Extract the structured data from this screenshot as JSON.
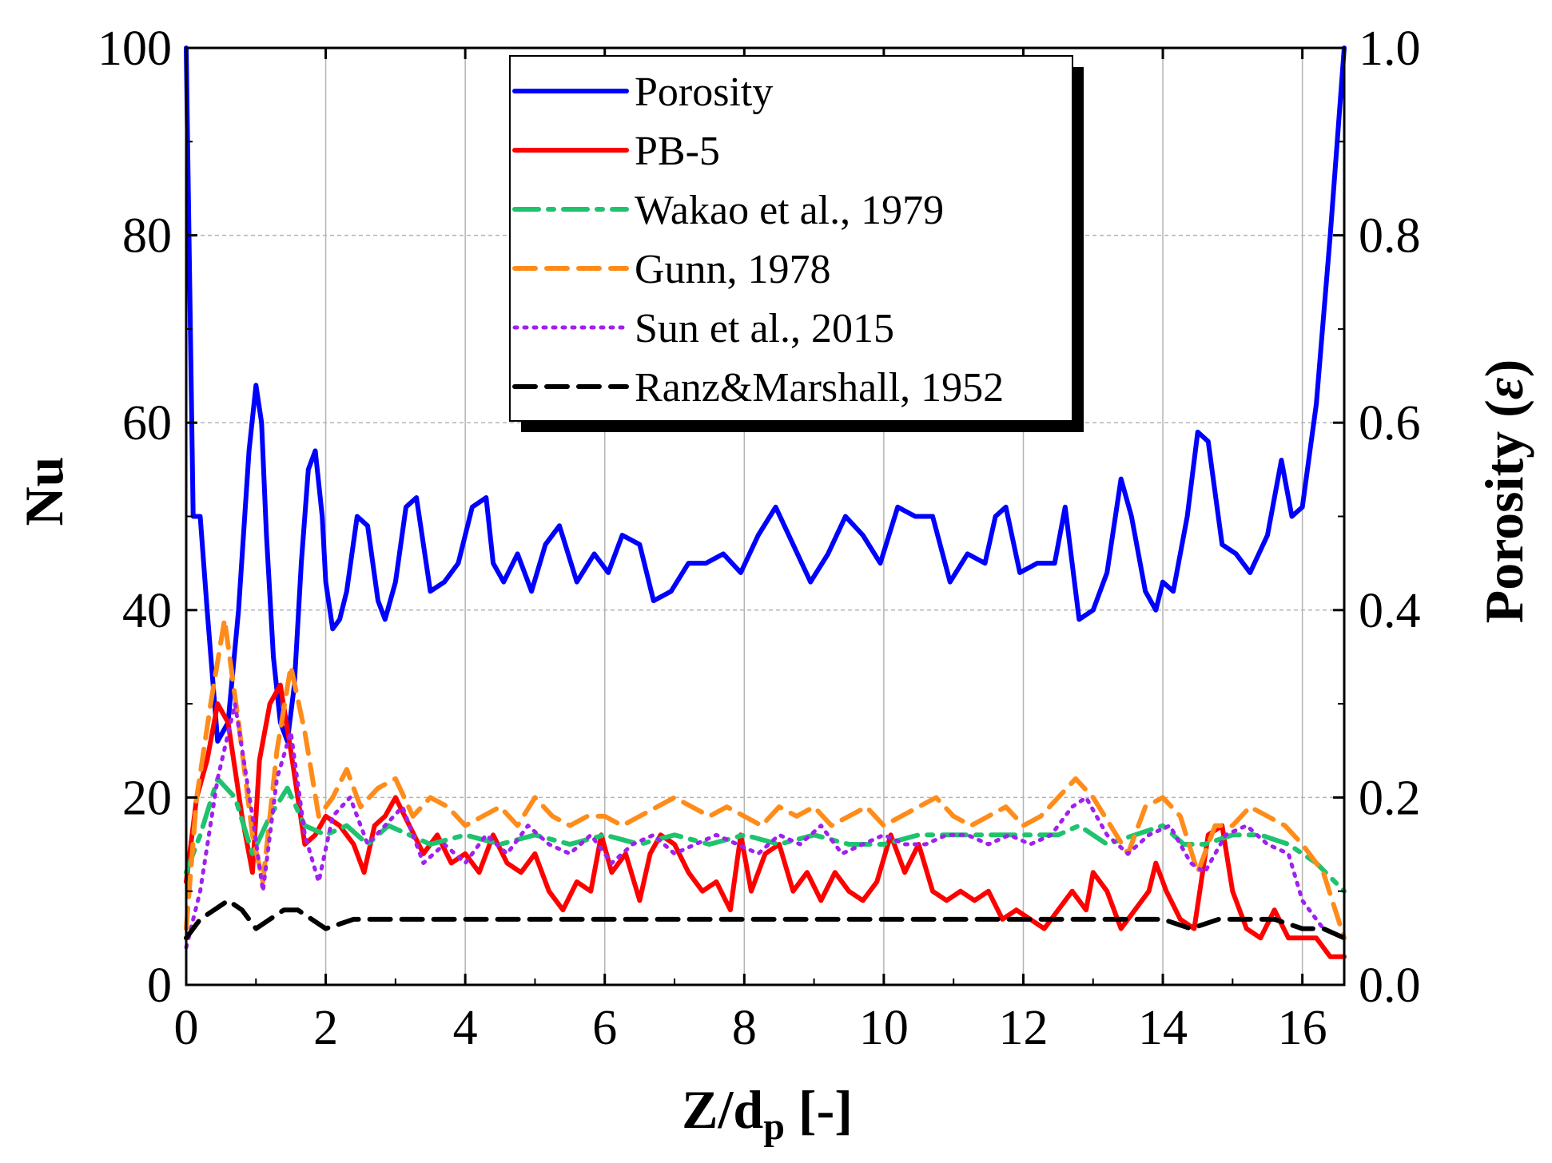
{
  "chart_data": {
    "type": "line",
    "title": "",
    "xlabel": {
      "main": "Z/d",
      "subscript": "p",
      "suffix": " [-]"
    },
    "ylabel": "Nu",
    "y2label": {
      "main": "Porosity (",
      "symbol": "ε",
      "suffix": ")"
    },
    "xlim": [
      0,
      16.6
    ],
    "ylim": [
      0,
      100
    ],
    "y2lim": [
      0.0,
      1.0
    ],
    "grid": true,
    "legend_position": "top-center",
    "xticks": [
      0,
      2,
      4,
      6,
      8,
      10,
      12,
      14,
      16
    ],
    "xtick_labels": [
      "0",
      "2",
      "4",
      "6",
      "8",
      "10",
      "12",
      "14",
      "16"
    ],
    "yticks": [
      0,
      20,
      40,
      60,
      80,
      100
    ],
    "ytick_labels": [
      "0",
      "20",
      "40",
      "60",
      "80",
      "100"
    ],
    "y2ticks": [
      0.0,
      0.2,
      0.4,
      0.6,
      0.8,
      1.0
    ],
    "y2tick_labels": [
      "0.0",
      "0.2",
      "0.4",
      "0.6",
      "0.8",
      "1.0"
    ],
    "series": [
      {
        "name": "Porosity",
        "axis": "right",
        "color": "#0000ff",
        "dash": "solid",
        "x": [
          0.0,
          0.1,
          0.2,
          0.3,
          0.45,
          0.6,
          0.75,
          0.9,
          1.0,
          1.08,
          1.15,
          1.25,
          1.35,
          1.45,
          1.55,
          1.65,
          1.75,
          1.85,
          1.95,
          2.0,
          2.1,
          2.2,
          2.3,
          2.45,
          2.6,
          2.75,
          2.85,
          3.0,
          3.15,
          3.3,
          3.5,
          3.7,
          3.9,
          4.1,
          4.3,
          4.4,
          4.55,
          4.75,
          4.95,
          5.15,
          5.35,
          5.6,
          5.85,
          6.05,
          6.25,
          6.5,
          6.7,
          6.95,
          7.2,
          7.45,
          7.7,
          7.95,
          8.2,
          8.45,
          8.7,
          8.95,
          9.2,
          9.45,
          9.7,
          9.95,
          10.2,
          10.45,
          10.7,
          10.95,
          11.2,
          11.45,
          11.6,
          11.75,
          11.95,
          12.2,
          12.45,
          12.6,
          12.8,
          13.0,
          13.2,
          13.4,
          13.55,
          13.75,
          13.9,
          14.0,
          14.15,
          14.35,
          14.5,
          14.65,
          14.85,
          15.05,
          15.25,
          15.5,
          15.7,
          15.85,
          16.0,
          16.2,
          16.4,
          16.6
        ],
        "values": [
          1.0,
          0.5,
          0.5,
          0.4,
          0.26,
          0.28,
          0.4,
          0.57,
          0.64,
          0.6,
          0.48,
          0.35,
          0.28,
          0.26,
          0.32,
          0.45,
          0.55,
          0.57,
          0.5,
          0.43,
          0.38,
          0.39,
          0.42,
          0.5,
          0.49,
          0.41,
          0.39,
          0.43,
          0.51,
          0.52,
          0.42,
          0.43,
          0.45,
          0.51,
          0.52,
          0.45,
          0.43,
          0.46,
          0.42,
          0.47,
          0.49,
          0.43,
          0.46,
          0.44,
          0.48,
          0.47,
          0.41,
          0.42,
          0.45,
          0.45,
          0.46,
          0.44,
          0.48,
          0.51,
          0.47,
          0.43,
          0.46,
          0.5,
          0.48,
          0.45,
          0.51,
          0.5,
          0.5,
          0.43,
          0.46,
          0.45,
          0.5,
          0.51,
          0.44,
          0.45,
          0.45,
          0.51,
          0.39,
          0.4,
          0.44,
          0.54,
          0.5,
          0.42,
          0.4,
          0.43,
          0.42,
          0.5,
          0.59,
          0.58,
          0.47,
          0.46,
          0.44,
          0.48,
          0.56,
          0.5,
          0.51,
          0.62,
          0.8,
          1.0
        ]
      },
      {
        "name": "PB-5",
        "axis": "left",
        "color": "#ff0000",
        "dash": "solid",
        "x": [
          0.0,
          0.15,
          0.3,
          0.45,
          0.6,
          0.8,
          0.95,
          1.05,
          1.2,
          1.35,
          1.5,
          1.7,
          1.85,
          2.0,
          2.2,
          2.4,
          2.55,
          2.7,
          2.85,
          3.0,
          3.2,
          3.4,
          3.6,
          3.8,
          4.0,
          4.2,
          4.4,
          4.6,
          4.8,
          5.0,
          5.2,
          5.4,
          5.6,
          5.8,
          5.95,
          6.1,
          6.3,
          6.5,
          6.65,
          6.8,
          7.0,
          7.2,
          7.4,
          7.6,
          7.8,
          7.95,
          8.1,
          8.3,
          8.5,
          8.7,
          8.9,
          9.1,
          9.3,
          9.5,
          9.7,
          9.9,
          10.1,
          10.3,
          10.5,
          10.7,
          10.9,
          11.1,
          11.3,
          11.5,
          11.7,
          11.9,
          12.1,
          12.3,
          12.5,
          12.7,
          12.9,
          13.0,
          13.2,
          13.4,
          13.6,
          13.8,
          13.9,
          14.05,
          14.25,
          14.45,
          14.65,
          14.85,
          15.0,
          15.2,
          15.4,
          15.6,
          15.8,
          16.0,
          16.2,
          16.4,
          16.6
        ],
        "values": [
          11,
          20,
          24,
          30,
          28,
          18,
          12,
          24,
          30,
          32,
          25,
          15,
          16,
          18,
          17,
          15,
          12,
          17,
          18,
          20,
          17,
          14,
          16,
          13,
          14,
          12,
          16,
          13,
          12,
          14,
          10,
          8,
          11,
          10,
          16,
          12,
          14,
          9,
          14,
          16,
          15,
          12,
          10,
          11,
          8,
          16,
          10,
          14,
          15,
          10,
          12,
          9,
          12,
          10,
          9,
          11,
          16,
          12,
          15,
          10,
          9,
          10,
          9,
          10,
          7,
          8,
          7,
          6,
          8,
          10,
          8,
          12,
          10,
          6,
          8,
          10,
          13,
          10,
          7,
          6,
          16,
          17,
          10,
          6,
          5,
          8,
          5,
          5,
          5,
          3,
          3
        ]
      },
      {
        "name": "Wakao et al., 1979",
        "axis": "left",
        "color": "#1fc36e",
        "dash": "dashdot",
        "x": [
          0.0,
          0.2,
          0.45,
          0.7,
          0.95,
          1.2,
          1.45,
          1.7,
          2.0,
          2.3,
          2.6,
          2.9,
          3.2,
          3.5,
          4.0,
          4.5,
          5.0,
          5.5,
          6.0,
          6.5,
          7.0,
          7.5,
          8.0,
          8.5,
          9.0,
          9.5,
          10.0,
          10.5,
          11.0,
          11.5,
          12.0,
          12.5,
          12.8,
          13.2,
          13.6,
          14.0,
          14.3,
          14.6,
          15.0,
          15.4,
          15.8,
          16.2,
          16.6
        ],
        "values": [
          12,
          16,
          22,
          20,
          14,
          18,
          21,
          17,
          16,
          17,
          15,
          17,
          16,
          15,
          16,
          15,
          16,
          15,
          16,
          15,
          16,
          15,
          16,
          15,
          16,
          15,
          15,
          16,
          16,
          16,
          16,
          16,
          17,
          15,
          16,
          17,
          15,
          15,
          16,
          16,
          15,
          13,
          10
        ]
      },
      {
        "name": "Gunn, 1978",
        "axis": "left",
        "color": "#ff8c1a",
        "dash": "dash",
        "x": [
          0.0,
          0.15,
          0.35,
          0.55,
          0.75,
          0.95,
          1.1,
          1.3,
          1.5,
          1.7,
          1.9,
          2.1,
          2.3,
          2.5,
          2.75,
          3.0,
          3.25,
          3.5,
          3.75,
          4.0,
          4.25,
          4.5,
          4.75,
          5.0,
          5.25,
          5.5,
          5.75,
          6.0,
          6.25,
          6.5,
          6.75,
          7.0,
          7.25,
          7.5,
          7.75,
          8.0,
          8.25,
          8.5,
          8.75,
          9.0,
          9.25,
          9.5,
          9.75,
          10.0,
          10.25,
          10.5,
          10.75,
          11.0,
          11.25,
          11.5,
          11.75,
          12.0,
          12.25,
          12.5,
          12.75,
          13.0,
          13.25,
          13.5,
          13.75,
          14.0,
          14.25,
          14.5,
          14.75,
          15.0,
          15.25,
          15.5,
          15.75,
          16.0,
          16.3,
          16.6
        ],
        "values": [
          6,
          20,
          30,
          39,
          28,
          16,
          11,
          25,
          34,
          27,
          18,
          20,
          23,
          19,
          21,
          22,
          18,
          20,
          19,
          17,
          18,
          19,
          17,
          20,
          18,
          17,
          18,
          18,
          17,
          18,
          19,
          20,
          19,
          18,
          19,
          18,
          17,
          19,
          18,
          19,
          17,
          18,
          19,
          17,
          18,
          19,
          20,
          18,
          17,
          18,
          19,
          17,
          18,
          20,
          22,
          20,
          17,
          14,
          19,
          20,
          18,
          12,
          17,
          17,
          19,
          18,
          17,
          15,
          12,
          5
        ]
      },
      {
        "name": "Sun et al., 2015",
        "axis": "left",
        "color": "#a020f0",
        "dash": "dot",
        "x": [
          0.0,
          0.2,
          0.45,
          0.7,
          0.95,
          1.1,
          1.3,
          1.5,
          1.7,
          1.9,
          2.1,
          2.35,
          2.6,
          2.85,
          3.1,
          3.4,
          3.7,
          4.0,
          4.3,
          4.6,
          4.9,
          5.2,
          5.5,
          5.8,
          6.1,
          6.4,
          6.7,
          7.0,
          7.3,
          7.6,
          7.9,
          8.2,
          8.5,
          8.8,
          9.1,
          9.4,
          9.7,
          10.0,
          10.3,
          10.6,
          10.9,
          11.2,
          11.5,
          11.8,
          12.1,
          12.4,
          12.7,
          12.9,
          13.2,
          13.5,
          13.8,
          14.1,
          14.4,
          14.6,
          14.9,
          15.2,
          15.5,
          15.8,
          16.0,
          16.3,
          16.6
        ],
        "values": [
          4,
          10,
          22,
          30,
          18,
          10,
          22,
          27,
          16,
          11,
          18,
          20,
          15,
          17,
          19,
          13,
          15,
          13,
          16,
          14,
          17,
          15,
          14,
          16,
          13,
          15,
          16,
          14,
          15,
          16,
          15,
          14,
          16,
          15,
          17,
          14,
          15,
          16,
          15,
          15,
          16,
          16,
          15,
          16,
          15,
          16,
          19,
          20,
          16,
          14,
          16,
          17,
          13,
          12,
          16,
          17,
          15,
          14,
          9,
          6,
          5
        ]
      },
      {
        "name": "Ranz&Marshall, 1952",
        "axis": "left",
        "color": "#000000",
        "dash": "dash",
        "x": [
          0.0,
          0.2,
          0.4,
          0.6,
          0.8,
          1.0,
          1.2,
          1.4,
          1.6,
          1.8,
          2.0,
          2.4,
          2.8,
          3.2,
          3.6,
          4.0,
          4.5,
          5.0,
          5.5,
          6.0,
          6.5,
          7.0,
          7.5,
          8.0,
          8.5,
          9.0,
          9.5,
          10.0,
          10.5,
          11.0,
          11.5,
          12.0,
          12.4,
          12.8,
          13.2,
          13.6,
          14.0,
          14.4,
          14.8,
          15.2,
          15.6,
          16.0,
          16.3,
          16.6
        ],
        "values": [
          5,
          7,
          8,
          9,
          8,
          6,
          7,
          8,
          8,
          7,
          6,
          7,
          7,
          7,
          7,
          7,
          7,
          7,
          7,
          7,
          7,
          7,
          7,
          7,
          7,
          7,
          7,
          7,
          7,
          7,
          7,
          7,
          7,
          7,
          7,
          7,
          7,
          6,
          7,
          7,
          7,
          6,
          6,
          5
        ]
      }
    ]
  }
}
